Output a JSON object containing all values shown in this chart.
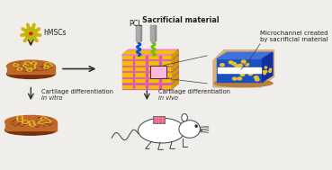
{
  "background_color": "#f0eeea",
  "fig_width": 3.69,
  "fig_height": 1.89,
  "dpi": 100,
  "labels": {
    "hmscs": "hMSCs",
    "pcl": "PCL",
    "sacrificial": "Sacrificial material",
    "microchannel": "Microchannel created\nby sacrificial material",
    "cartilage_vitro_line1": "Cartilage differentiation",
    "in_vitro": "in vitro",
    "cartilage_vivo_line1": "Cartilage differentiation",
    "in_vivo": "in vivo"
  },
  "colors": {
    "scaffold_pink": "#e050c8",
    "scaffold_yellow": "#f0c000",
    "scaffold_orange": "#d06000",
    "hydrogel_brown": "#c06828",
    "hydrogel_yellow": "#e8c030",
    "hydrogel_dark": "#7a3010",
    "hydrogel_line": "#5a2008",
    "blue_scaffold": "#1a50c0",
    "blue_yellow": "#e8c030",
    "arrow_color": "#303030",
    "cell_star": "#d8b000",
    "cell_green": "#90c820",
    "cell_red": "#c03030",
    "nozzle_gray": "#909090",
    "nozzle_dark": "#606060",
    "pcl_blue": "#0050d0",
    "sacrificial_green": "#70c000",
    "white": "#ffffff",
    "text_dark": "#202020",
    "bg_tan": "#d8b080"
  }
}
